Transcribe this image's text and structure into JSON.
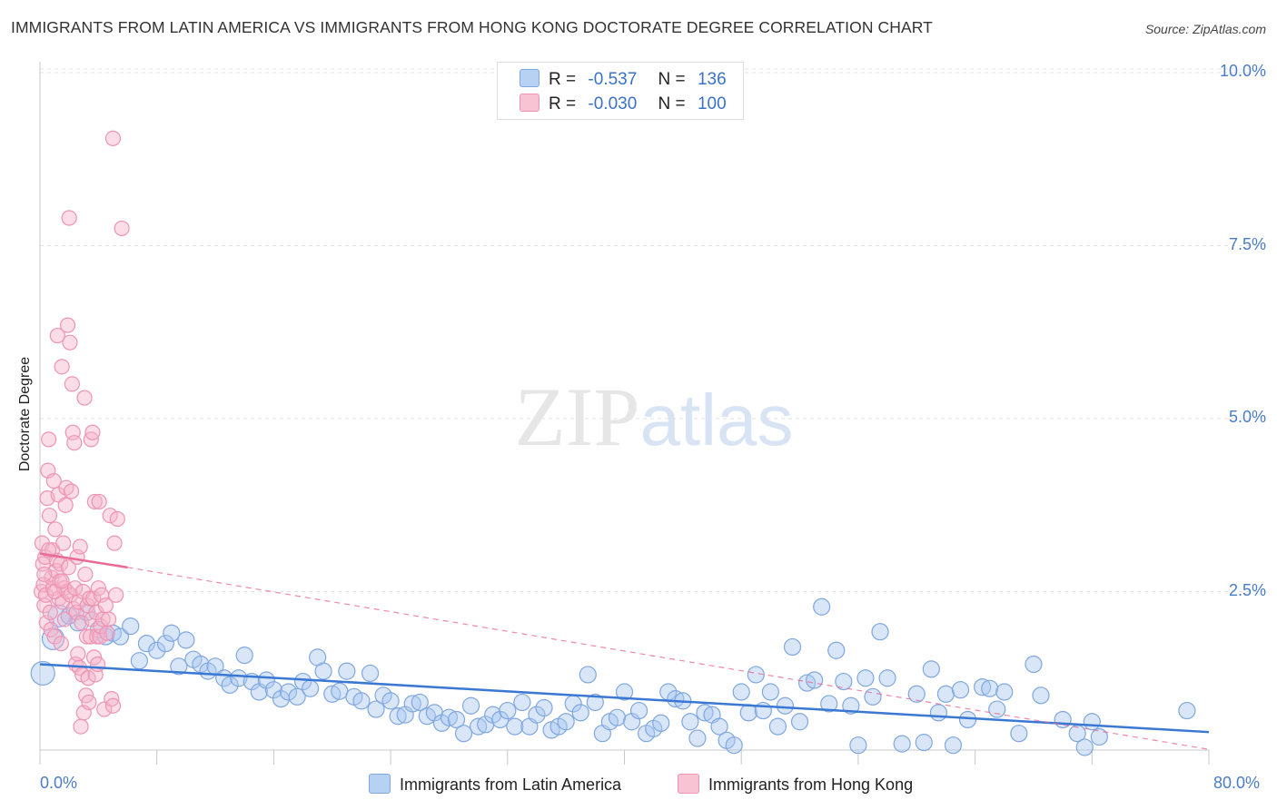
{
  "title": "IMMIGRANTS FROM LATIN AMERICA VS IMMIGRANTS FROM HONG KONG DOCTORATE DEGREE CORRELATION CHART",
  "source": "Source: ZipAtlas.com",
  "watermark": "ZIPatlas",
  "colors": {
    "blue": "#3a78d4",
    "blue_fill": "#a9c8f0",
    "pink": "#e96b95",
    "pink_fill": "#f4b4c9",
    "tick_text": "#4a7cc7"
  },
  "legend": {
    "r_label": "R =",
    "n_label": "N =",
    "series1": {
      "r": "-0.537",
      "n": "136"
    },
    "series2": {
      "r": "-0.030",
      "n": "100"
    }
  },
  "chart_data": {
    "type": "scatter",
    "title": "IMMIGRANTS FROM LATIN AMERICA VS IMMIGRANTS FROM HONG KONG DOCTORATE DEGREE CORRELATION CHART",
    "xlabel": "",
    "ylabel": "Doctorate Degree",
    "xlim": [
      0,
      80
    ],
    "ylim": [
      0,
      10.5
    ],
    "x_tick_labels": [
      "0.0%",
      "80.0%"
    ],
    "y_tick_labels": [
      "2.5%",
      "5.0%",
      "7.5%",
      "10.0%"
    ],
    "y_ticks": [
      2.5,
      5.0,
      7.5,
      10.0
    ],
    "grid": true,
    "legend_placement": "top-center",
    "series": [
      {
        "name": "Immigrants from Latin America",
        "color": "#3a78d4",
        "trend": {
          "x": [
            0,
            80
          ],
          "y": [
            1.45,
            0.47
          ],
          "style": "solid"
        },
        "points": [
          [
            0.2,
            1.32
          ],
          [
            0.9,
            1.82
          ],
          [
            1.3,
            2.15
          ],
          [
            2.0,
            2.15
          ],
          [
            2.6,
            2.05
          ],
          [
            3.2,
            2.2
          ],
          [
            4.0,
            1.95
          ],
          [
            4.5,
            1.85
          ],
          [
            5.0,
            1.9
          ],
          [
            5.5,
            1.85
          ],
          [
            6.2,
            2.0
          ],
          [
            6.8,
            1.5
          ],
          [
            7.3,
            1.75
          ],
          [
            8.0,
            1.65
          ],
          [
            8.6,
            1.75
          ],
          [
            9.0,
            1.9
          ],
          [
            9.5,
            1.42
          ],
          [
            10.0,
            1.8
          ],
          [
            10.5,
            1.52
          ],
          [
            11.0,
            1.45
          ],
          [
            11.5,
            1.35
          ],
          [
            12.0,
            1.42
          ],
          [
            12.6,
            1.25
          ],
          [
            13.0,
            1.15
          ],
          [
            13.6,
            1.25
          ],
          [
            14.0,
            1.58
          ],
          [
            14.5,
            1.2
          ],
          [
            15.0,
            1.05
          ],
          [
            15.5,
            1.22
          ],
          [
            16.0,
            1.08
          ],
          [
            16.5,
            0.95
          ],
          [
            17.0,
            1.05
          ],
          [
            17.6,
            0.98
          ],
          [
            18.0,
            1.2
          ],
          [
            18.5,
            1.1
          ],
          [
            19.0,
            1.55
          ],
          [
            19.4,
            1.35
          ],
          [
            20.0,
            1.02
          ],
          [
            20.5,
            1.06
          ],
          [
            21.0,
            1.35
          ],
          [
            21.5,
            0.98
          ],
          [
            22.0,
            0.92
          ],
          [
            22.6,
            1.32
          ],
          [
            23.0,
            0.8
          ],
          [
            23.5,
            1.0
          ],
          [
            24.0,
            0.92
          ],
          [
            24.5,
            0.7
          ],
          [
            25.0,
            0.72
          ],
          [
            25.5,
            0.88
          ],
          [
            26.0,
            0.9
          ],
          [
            26.5,
            0.7
          ],
          [
            27.0,
            0.75
          ],
          [
            27.5,
            0.6
          ],
          [
            28.0,
            0.68
          ],
          [
            28.5,
            0.65
          ],
          [
            29.0,
            0.45
          ],
          [
            29.5,
            0.85
          ],
          [
            30.0,
            0.55
          ],
          [
            30.5,
            0.58
          ],
          [
            31.0,
            0.72
          ],
          [
            31.5,
            0.65
          ],
          [
            32.0,
            0.78
          ],
          [
            32.5,
            0.55
          ],
          [
            33.0,
            0.9
          ],
          [
            33.5,
            0.55
          ],
          [
            34.0,
            0.72
          ],
          [
            34.5,
            0.82
          ],
          [
            35.0,
            0.5
          ],
          [
            35.5,
            0.55
          ],
          [
            36.0,
            0.62
          ],
          [
            36.5,
            0.88
          ],
          [
            37.0,
            0.75
          ],
          [
            37.5,
            1.3
          ],
          [
            38.0,
            0.9
          ],
          [
            38.5,
            0.45
          ],
          [
            39.0,
            0.62
          ],
          [
            39.5,
            0.68
          ],
          [
            40.0,
            1.05
          ],
          [
            40.5,
            0.62
          ],
          [
            41.0,
            0.78
          ],
          [
            41.5,
            0.45
          ],
          [
            42.0,
            0.52
          ],
          [
            42.5,
            0.6
          ],
          [
            43.0,
            1.05
          ],
          [
            43.5,
            0.95
          ],
          [
            44.0,
            0.92
          ],
          [
            44.5,
            0.62
          ],
          [
            45.0,
            0.38
          ],
          [
            45.5,
            0.75
          ],
          [
            46.0,
            0.72
          ],
          [
            46.5,
            0.55
          ],
          [
            47.0,
            0.35
          ],
          [
            47.5,
            0.28
          ],
          [
            48.0,
            1.05
          ],
          [
            48.5,
            0.75
          ],
          [
            49.0,
            1.3
          ],
          [
            49.5,
            0.78
          ],
          [
            50.0,
            1.05
          ],
          [
            50.5,
            0.55
          ],
          [
            51.0,
            0.85
          ],
          [
            51.5,
            1.7
          ],
          [
            52.0,
            0.62
          ],
          [
            52.5,
            1.18
          ],
          [
            53.0,
            1.22
          ],
          [
            53.5,
            2.28
          ],
          [
            54.0,
            0.88
          ],
          [
            54.5,
            1.65
          ],
          [
            55.0,
            1.2
          ],
          [
            55.5,
            0.85
          ],
          [
            56.0,
            0.28
          ],
          [
            56.5,
            1.25
          ],
          [
            57.0,
            0.98
          ],
          [
            57.5,
            1.92
          ],
          [
            58.0,
            1.25
          ],
          [
            59.0,
            0.3
          ],
          [
            60.0,
            1.02
          ],
          [
            60.5,
            0.32
          ],
          [
            61.0,
            1.38
          ],
          [
            61.5,
            0.75
          ],
          [
            62.0,
            1.02
          ],
          [
            62.5,
            0.28
          ],
          [
            63.0,
            1.08
          ],
          [
            63.5,
            0.65
          ],
          [
            64.5,
            1.12
          ],
          [
            65.0,
            1.1
          ],
          [
            65.5,
            0.8
          ],
          [
            66.0,
            1.05
          ],
          [
            67.0,
            0.45
          ],
          [
            68.0,
            1.45
          ],
          [
            68.5,
            1.0
          ],
          [
            70.0,
            0.65
          ],
          [
            71.0,
            0.45
          ],
          [
            71.5,
            0.25
          ],
          [
            72.0,
            0.62
          ],
          [
            72.5,
            0.4
          ],
          [
            78.5,
            0.78
          ]
        ]
      },
      {
        "name": "Immigrants from Hong Kong",
        "color": "#e96b95",
        "trend": {
          "x": [
            0,
            6.0
          ],
          "y": [
            3.05,
            2.85
          ],
          "style": "solid",
          "dashed_extension_to": [
            80,
            0.22
          ]
        },
        "points": [
          [
            0.1,
            2.5
          ],
          [
            0.15,
            3.2
          ],
          [
            0.2,
            2.9
          ],
          [
            0.25,
            2.6
          ],
          [
            0.3,
            2.3
          ],
          [
            0.35,
            3.0
          ],
          [
            0.4,
            2.45
          ],
          [
            0.45,
            2.05
          ],
          [
            0.5,
            3.85
          ],
          [
            0.55,
            4.25
          ],
          [
            0.6,
            4.7
          ],
          [
            0.65,
            3.6
          ],
          [
            0.7,
            2.2
          ],
          [
            0.75,
            1.95
          ],
          [
            0.8,
            2.7
          ],
          [
            0.85,
            3.1
          ],
          [
            0.9,
            2.55
          ],
          [
            0.95,
            4.1
          ],
          [
            1.0,
            1.85
          ],
          [
            1.05,
            3.4
          ],
          [
            1.1,
            2.8
          ],
          [
            1.15,
            2.95
          ],
          [
            1.2,
            6.2
          ],
          [
            1.25,
            3.9
          ],
          [
            1.3,
            2.4
          ],
          [
            1.35,
            2.65
          ],
          [
            1.4,
            2.9
          ],
          [
            1.45,
            1.75
          ],
          [
            1.5,
            5.75
          ],
          [
            1.55,
            2.35
          ],
          [
            1.6,
            3.2
          ],
          [
            1.65,
            2.55
          ],
          [
            1.7,
            2.1
          ],
          [
            1.75,
            3.75
          ],
          [
            1.8,
            4.0
          ],
          [
            1.85,
            2.5
          ],
          [
            1.9,
            6.35
          ],
          [
            1.95,
            2.85
          ],
          [
            2.0,
            7.9
          ],
          [
            2.05,
            6.1
          ],
          [
            2.1,
            2.45
          ],
          [
            2.15,
            3.95
          ],
          [
            2.2,
            5.5
          ],
          [
            2.25,
            4.8
          ],
          [
            2.3,
            2.25
          ],
          [
            2.35,
            4.65
          ],
          [
            2.4,
            2.55
          ],
          [
            2.45,
            1.45
          ],
          [
            2.5,
            2.2
          ],
          [
            2.55,
            3.0
          ],
          [
            2.6,
            1.6
          ],
          [
            2.65,
            2.35
          ],
          [
            2.7,
            1.4
          ],
          [
            2.75,
            3.15
          ],
          [
            2.8,
            0.55
          ],
          [
            2.85,
            2.05
          ],
          [
            2.9,
            1.3
          ],
          [
            2.95,
            2.5
          ],
          [
            3.0,
            0.75
          ],
          [
            3.05,
            5.3
          ],
          [
            3.1,
            2.75
          ],
          [
            3.15,
            1.0
          ],
          [
            3.2,
            1.85
          ],
          [
            3.25,
            2.3
          ],
          [
            3.3,
            1.25
          ],
          [
            3.35,
            0.9
          ],
          [
            3.4,
            2.4
          ],
          [
            3.45,
            1.85
          ],
          [
            3.5,
            4.7
          ],
          [
            3.55,
            2.1
          ],
          [
            3.6,
            4.8
          ],
          [
            3.65,
            2.4
          ],
          [
            3.7,
            1.55
          ],
          [
            3.75,
            3.8
          ],
          [
            3.8,
            1.3
          ],
          [
            3.85,
            2.2
          ],
          [
            3.9,
            1.85
          ],
          [
            3.95,
            1.45
          ],
          [
            4.0,
            2.55
          ],
          [
            4.05,
            3.8
          ],
          [
            4.1,
            1.85
          ],
          [
            4.15,
            2.0
          ],
          [
            4.2,
            2.45
          ],
          [
            4.3,
            2.1
          ],
          [
            4.4,
            0.8
          ],
          [
            4.5,
            2.3
          ],
          [
            4.6,
            1.9
          ],
          [
            4.7,
            2.1
          ],
          [
            4.8,
            3.6
          ],
          [
            4.9,
            0.95
          ],
          [
            5.0,
            0.85
          ],
          [
            5.1,
            3.2
          ],
          [
            5.2,
            2.45
          ],
          [
            5.3,
            3.55
          ],
          [
            5.0,
            9.05
          ],
          [
            5.6,
            7.75
          ],
          [
            0.3,
            2.75
          ],
          [
            0.6,
            3.1
          ],
          [
            1.0,
            2.5
          ],
          [
            1.5,
            2.65
          ]
        ]
      }
    ]
  },
  "bottom_legend": {
    "series1": "Immigrants from Latin America",
    "series2": "Immigrants from Hong Kong"
  }
}
